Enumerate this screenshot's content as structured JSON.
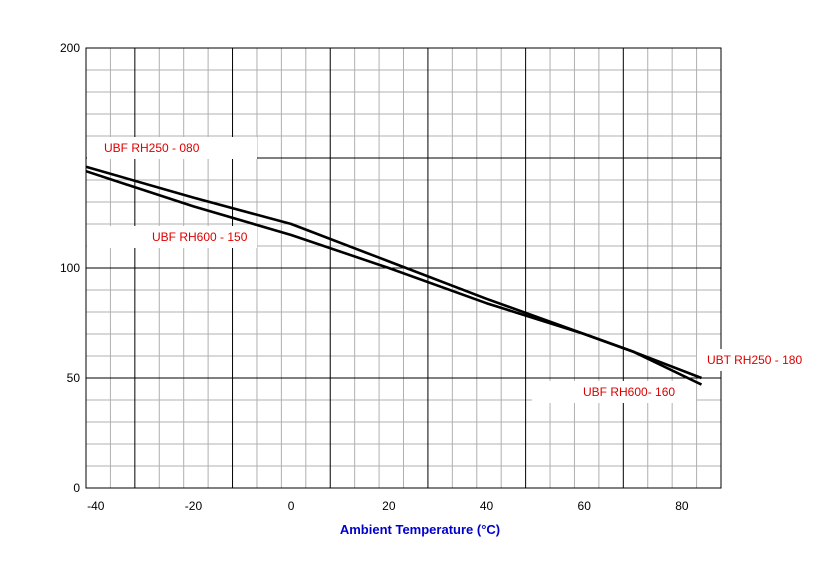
{
  "chart_data": {
    "type": "line",
    "xlabel": "Ambient Temperature (°C)",
    "ylabel": "",
    "title": "",
    "xlim": [
      -42,
      88
    ],
    "x_ticks": [
      -40,
      -20,
      0,
      20,
      40,
      60,
      80
    ],
    "x_tick_labels": [
      "-40",
      "-20",
      "0",
      "20",
      "40",
      "60",
      "80"
    ],
    "y_axis_labels": [
      {
        "value": 0,
        "label": "0"
      },
      {
        "value": 50,
        "label": "50"
      },
      {
        "value": 100,
        "label": "100"
      },
      {
        "value": 200,
        "label": "200"
      }
    ],
    "grid": true,
    "series": [
      {
        "name": "UBF RH250 - 080",
        "color": "#000000",
        "points": [
          [
            -42,
            146
          ],
          [
            -20,
            132
          ],
          [
            0,
            120
          ],
          [
            20,
            103
          ],
          [
            40,
            86
          ],
          [
            60,
            70
          ],
          [
            70,
            62
          ],
          [
            84,
            50
          ]
        ]
      },
      {
        "name": "UBF RH600 - 150",
        "color": "#000000",
        "points": [
          [
            -42,
            144
          ],
          [
            -20,
            128
          ],
          [
            0,
            115
          ],
          [
            20,
            100
          ],
          [
            40,
            84
          ],
          [
            60,
            70
          ],
          [
            70,
            62
          ],
          [
            84,
            47
          ]
        ]
      }
    ],
    "annotations": [
      {
        "text": "UBF RH250 - 080",
        "color": "#dd0000"
      },
      {
        "text": "UBF RH600 - 150",
        "color": "#dd0000"
      },
      {
        "text": "UBT RH250 - 180",
        "color": "#dd0000"
      },
      {
        "text": "UBF RH600- 160",
        "color": "#dd0000"
      }
    ]
  }
}
